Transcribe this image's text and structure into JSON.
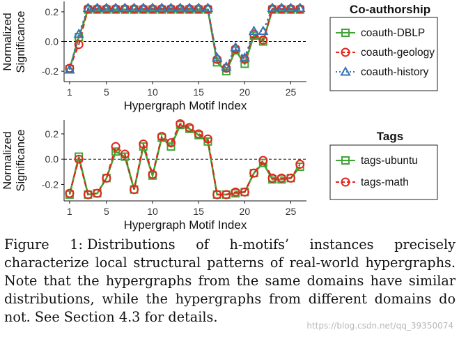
{
  "chart_data": [
    {
      "type": "line",
      "x": [
        1,
        2,
        3,
        4,
        5,
        6,
        7,
        8,
        9,
        10,
        11,
        12,
        13,
        14,
        15,
        16,
        17,
        18,
        19,
        20,
        21,
        22,
        23,
        24,
        25,
        26
      ],
      "xticks": [
        1,
        5,
        10,
        15,
        20,
        25
      ],
      "yticks": [
        -0.2,
        0.0,
        0.2
      ],
      "ytick_labels": [
        "-0.2",
        "0.0",
        "0.2"
      ],
      "ylim": [
        -0.27,
        0.27
      ],
      "xlabel": "Hypergraph Motif Index",
      "ylabel": [
        "Normalized",
        "Significance"
      ],
      "reference_line": 0,
      "legend_title": "Co-authorship",
      "legend_position": "right",
      "series": [
        {
          "name": "coauth-DBLP",
          "marker": "square",
          "color": "#3fa535",
          "values": [
            -0.185,
            0.03,
            0.215,
            0.215,
            0.215,
            0.215,
            0.215,
            0.215,
            0.215,
            0.215,
            0.215,
            0.215,
            0.215,
            0.215,
            0.215,
            0.215,
            -0.14,
            -0.2,
            -0.06,
            -0.15,
            0.04,
            0.0,
            0.215,
            0.215,
            0.215,
            0.215
          ]
        },
        {
          "name": "coauth-geology",
          "marker": "circle",
          "color": "#e3231b",
          "values": [
            -0.18,
            -0.02,
            0.22,
            0.22,
            0.22,
            0.22,
            0.22,
            0.22,
            0.22,
            0.22,
            0.22,
            0.22,
            0.22,
            0.22,
            0.22,
            0.22,
            -0.12,
            -0.18,
            -0.05,
            -0.12,
            0.05,
            0.01,
            0.22,
            0.22,
            0.22,
            0.22
          ]
        },
        {
          "name": "coauth-history",
          "marker": "triangle",
          "color": "#3774b8",
          "values": [
            -0.19,
            0.05,
            0.225,
            0.225,
            0.225,
            0.225,
            0.225,
            0.225,
            0.225,
            0.225,
            0.225,
            0.225,
            0.225,
            0.225,
            0.225,
            0.225,
            -0.11,
            -0.17,
            -0.04,
            -0.11,
            0.07,
            0.07,
            0.225,
            0.225,
            0.225,
            0.225
          ]
        }
      ]
    },
    {
      "type": "line",
      "x": [
        1,
        2,
        3,
        4,
        5,
        6,
        7,
        8,
        9,
        10,
        11,
        12,
        13,
        14,
        15,
        16,
        17,
        18,
        19,
        20,
        21,
        22,
        23,
        24,
        25,
        26
      ],
      "xticks": [
        1,
        5,
        10,
        15,
        20,
        25
      ],
      "yticks": [
        -0.2,
        0.0,
        0.2
      ],
      "ytick_labels": [
        "-0.2",
        "0.0",
        "0.2"
      ],
      "ylim": [
        -0.33,
        0.31
      ],
      "xlabel": "Hypergraph Motif Index",
      "ylabel": [
        "Normalized",
        "Significance"
      ],
      "reference_line": 0,
      "legend_title": "Tags",
      "legend_position": "right",
      "series": [
        {
          "name": "tags-ubuntu",
          "marker": "square",
          "color": "#3fa535",
          "values": [
            -0.28,
            0.02,
            -0.28,
            -0.27,
            -0.15,
            0.06,
            0.02,
            -0.24,
            0.1,
            -0.13,
            0.17,
            0.1,
            0.27,
            0.24,
            0.19,
            0.14,
            -0.28,
            -0.28,
            -0.27,
            -0.26,
            -0.11,
            -0.03,
            -0.16,
            -0.16,
            -0.15,
            -0.06
          ]
        },
        {
          "name": "tags-math",
          "marker": "circle",
          "color": "#e3231b",
          "values": [
            -0.27,
            0.0,
            -0.28,
            -0.27,
            -0.15,
            0.1,
            0.04,
            -0.24,
            0.12,
            -0.12,
            0.18,
            0.13,
            0.28,
            0.25,
            0.2,
            0.16,
            -0.28,
            -0.28,
            -0.26,
            -0.26,
            -0.11,
            -0.01,
            -0.15,
            -0.15,
            -0.15,
            -0.04
          ]
        }
      ]
    }
  ],
  "caption": {
    "label": "Figure 1:",
    "text": "Distributions of h-motifs’ instances precisely characterize local structural patterns of real-world hypergraphs. Note that the hypergraphs from the same domains have similar distributions, while the hypergraphs from different domains do not. See Section 4.3 for details."
  },
  "watermark": "https://blog.csdn.net/qq_39350074"
}
